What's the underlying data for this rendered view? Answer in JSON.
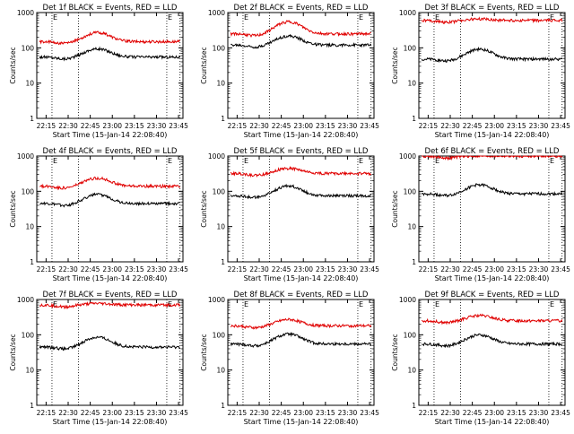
{
  "shared": {
    "xlabel": "Start Time (15-Jan-14 22:08:40)",
    "ylabel": "Counts/sec",
    "x_ticks": [
      "22:15",
      "22:30",
      "22:45",
      "23:00",
      "23:15",
      "23:30",
      "23:45"
    ],
    "y_ticks": [
      "1",
      "10",
      "100",
      "1000"
    ],
    "marker_label": "E",
    "colors": {
      "events": "#000000",
      "lld": "#e00000",
      "axes": "#000000"
    }
  },
  "chart_data": [
    {
      "type": "line",
      "title": "Det 1f BLACK = Events, RED = LLD",
      "yscale": "log",
      "ylim": [
        1,
        1000
      ],
      "xlim": [
        "22:08:40",
        "23:48:00"
      ],
      "x_range_label": [
        "22:15",
        "23:45"
      ],
      "series": [
        {
          "color": "black",
          "base": 55,
          "bump": 1.7
        },
        {
          "color": "red",
          "base": 150,
          "bump": 1.8
        }
      ]
    },
    {
      "type": "line",
      "title": "Det 2f BLACK = Events, RED = LLD",
      "yscale": "log",
      "ylim": [
        1,
        1000
      ],
      "xlim": [
        "22:08:40",
        "23:48:00"
      ],
      "series": [
        {
          "color": "black",
          "base": 120,
          "bump": 1.8
        },
        {
          "color": "red",
          "base": 250,
          "bump": 2.2
        }
      ]
    },
    {
      "type": "line",
      "title": "Det 3f BLACK = Events, RED = LLD",
      "yscale": "log",
      "ylim": [
        1,
        1000
      ],
      "xlim": [
        "22:08:40",
        "23:48:00"
      ],
      "series": [
        {
          "color": "black",
          "base": 48,
          "bump": 1.9
        },
        {
          "color": "red",
          "base": 600,
          "bump": 1.1
        }
      ]
    },
    {
      "type": "line",
      "title": "Det 4f BLACK = Events, RED = LLD",
      "yscale": "log",
      "ylim": [
        1,
        1000
      ],
      "xlim": [
        "22:08:40",
        "23:48:00"
      ],
      "series": [
        {
          "color": "black",
          "base": 45,
          "bump": 1.8
        },
        {
          "color": "red",
          "base": 140,
          "bump": 1.7
        }
      ]
    },
    {
      "type": "line",
      "title": "Det 5f BLACK = Events, RED = LLD",
      "yscale": "log",
      "ylim": [
        1,
        1000
      ],
      "xlim": [
        "22:08:40",
        "23:48:00"
      ],
      "series": [
        {
          "color": "black",
          "base": 75,
          "bump": 1.9
        },
        {
          "color": "red",
          "base": 320,
          "bump": 1.4
        }
      ]
    },
    {
      "type": "line",
      "title": "Det 6f BLACK = Events, RED = LLD",
      "yscale": "log",
      "ylim": [
        1,
        1000
      ],
      "xlim": [
        "22:08:40",
        "23:48:00"
      ],
      "series": [
        {
          "color": "black",
          "base": 85,
          "bump": 1.8
        },
        {
          "color": "red",
          "base": 1000,
          "bump": 1.0
        }
      ]
    },
    {
      "type": "line",
      "title": "Det 7f BLACK = Events, RED = LLD",
      "yscale": "log",
      "ylim": [
        1,
        1000
      ],
      "xlim": [
        "22:08:40",
        "23:48:00"
      ],
      "series": [
        {
          "color": "black",
          "base": 45,
          "bump": 1.9
        },
        {
          "color": "red",
          "base": 700,
          "bump": 1.1
        }
      ]
    },
    {
      "type": "line",
      "title": "Det 8f BLACK = Events, RED = LLD",
      "yscale": "log",
      "ylim": [
        1,
        1000
      ],
      "xlim": [
        "22:08:40",
        "23:48:00"
      ],
      "series": [
        {
          "color": "black",
          "base": 55,
          "bump": 1.9
        },
        {
          "color": "red",
          "base": 180,
          "bump": 1.5
        }
      ]
    },
    {
      "type": "line",
      "title": "Det 9f BLACK = Events, RED = LLD",
      "yscale": "log",
      "ylim": [
        1,
        1000
      ],
      "xlim": [
        "22:08:40",
        "23:48:00"
      ],
      "series": [
        {
          "color": "black",
          "base": 55,
          "bump": 1.8
        },
        {
          "color": "red",
          "base": 250,
          "bump": 1.4
        }
      ]
    }
  ]
}
